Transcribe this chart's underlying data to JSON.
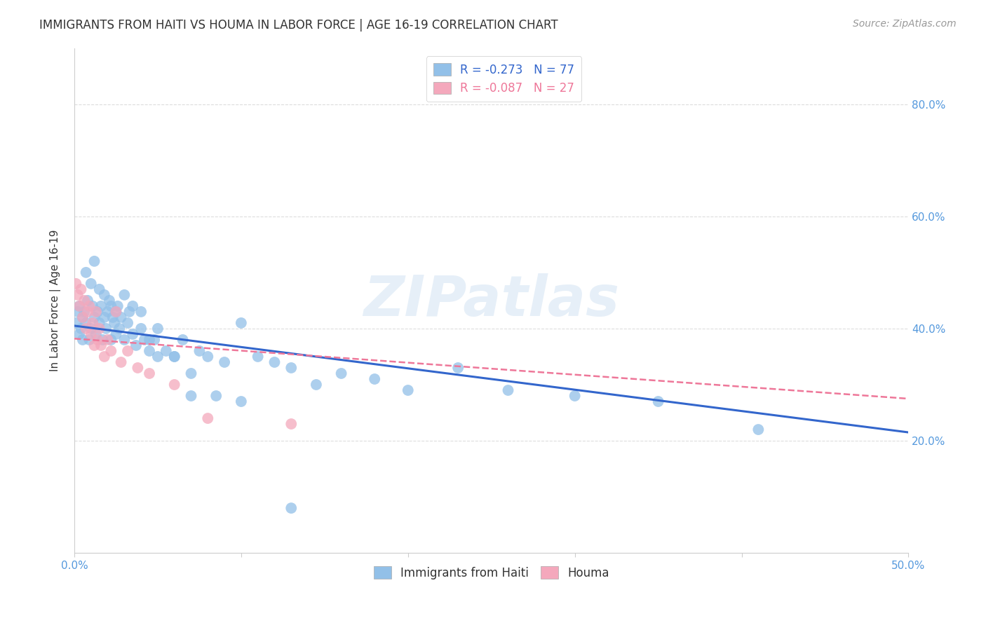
{
  "title": "IMMIGRANTS FROM HAITI VS HOUMA IN LABOR FORCE | AGE 16-19 CORRELATION CHART",
  "source_text": "Source: ZipAtlas.com",
  "ylabel": "In Labor Force | Age 16-19",
  "xlim": [
    0.0,
    0.5
  ],
  "ylim": [
    0.0,
    0.9
  ],
  "ytick_positions": [
    0.2,
    0.4,
    0.6,
    0.8
  ],
  "ytick_labels": [
    "20.0%",
    "40.0%",
    "60.0%",
    "80.0%"
  ],
  "xtick_positions": [
    0.0,
    0.1,
    0.2,
    0.3,
    0.4,
    0.5
  ],
  "xtick_edge_labels_only": true,
  "haiti_color": "#92C0E8",
  "houma_color": "#F4A8BC",
  "haiti_line_color": "#3366CC",
  "houma_line_color": "#EE7799",
  "haiti_R": -0.273,
  "haiti_N": 77,
  "houma_R": -0.087,
  "houma_N": 27,
  "haiti_line_start_y": 0.405,
  "haiti_line_end_y": 0.215,
  "houma_line_start_y": 0.382,
  "houma_line_end_y": 0.275,
  "haiti_scatter_x": [
    0.001,
    0.002,
    0.003,
    0.003,
    0.004,
    0.005,
    0.005,
    0.006,
    0.007,
    0.008,
    0.009,
    0.01,
    0.011,
    0.012,
    0.013,
    0.014,
    0.015,
    0.016,
    0.017,
    0.018,
    0.019,
    0.02,
    0.021,
    0.022,
    0.023,
    0.024,
    0.025,
    0.026,
    0.027,
    0.028,
    0.03,
    0.032,
    0.033,
    0.035,
    0.037,
    0.04,
    0.042,
    0.045,
    0.048,
    0.05,
    0.055,
    0.06,
    0.065,
    0.07,
    0.075,
    0.08,
    0.09,
    0.1,
    0.11,
    0.12,
    0.13,
    0.145,
    0.16,
    0.18,
    0.2,
    0.23,
    0.26,
    0.3,
    0.35,
    0.41,
    0.007,
    0.01,
    0.012,
    0.015,
    0.018,
    0.022,
    0.025,
    0.03,
    0.035,
    0.04,
    0.045,
    0.05,
    0.06,
    0.07,
    0.085,
    0.1,
    0.13
  ],
  "haiti_scatter_y": [
    0.41,
    0.43,
    0.39,
    0.44,
    0.4,
    0.42,
    0.38,
    0.43,
    0.41,
    0.45,
    0.38,
    0.4,
    0.44,
    0.42,
    0.39,
    0.43,
    0.41,
    0.44,
    0.38,
    0.42,
    0.4,
    0.43,
    0.45,
    0.38,
    0.42,
    0.41,
    0.39,
    0.44,
    0.4,
    0.42,
    0.38,
    0.41,
    0.43,
    0.39,
    0.37,
    0.4,
    0.38,
    0.36,
    0.38,
    0.4,
    0.36,
    0.35,
    0.38,
    0.32,
    0.36,
    0.35,
    0.34,
    0.41,
    0.35,
    0.34,
    0.33,
    0.3,
    0.32,
    0.31,
    0.29,
    0.33,
    0.29,
    0.28,
    0.27,
    0.22,
    0.5,
    0.48,
    0.52,
    0.47,
    0.46,
    0.44,
    0.43,
    0.46,
    0.44,
    0.43,
    0.38,
    0.35,
    0.35,
    0.28,
    0.28,
    0.27,
    0.08
  ],
  "houma_scatter_x": [
    0.001,
    0.002,
    0.003,
    0.004,
    0.005,
    0.006,
    0.007,
    0.008,
    0.009,
    0.01,
    0.011,
    0.012,
    0.013,
    0.014,
    0.015,
    0.016,
    0.018,
    0.02,
    0.022,
    0.025,
    0.028,
    0.032,
    0.038,
    0.045,
    0.06,
    0.08,
    0.13
  ],
  "houma_scatter_y": [
    0.48,
    0.46,
    0.44,
    0.47,
    0.42,
    0.45,
    0.4,
    0.43,
    0.44,
    0.39,
    0.41,
    0.37,
    0.43,
    0.38,
    0.4,
    0.37,
    0.35,
    0.38,
    0.36,
    0.43,
    0.34,
    0.36,
    0.33,
    0.32,
    0.3,
    0.24,
    0.23
  ],
  "watermark": "ZIPatlas",
  "grid_color": "#DDDDDD",
  "background_color": "#FFFFFF",
  "title_color": "#333333",
  "tick_color": "#5599DD",
  "source_color": "#999999"
}
